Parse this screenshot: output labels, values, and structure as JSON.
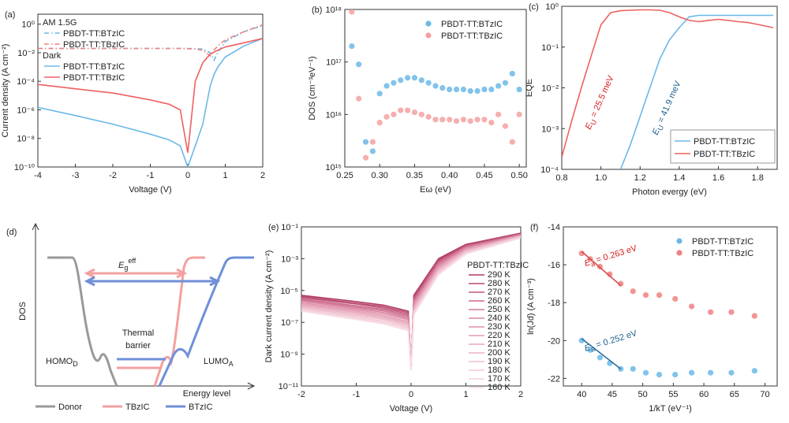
{
  "chart_data": [
    {
      "panel": "(a)",
      "type": "line",
      "x_label": "Voltage (V)",
      "y_label": "Current density (A cm⁻²)",
      "xlim": [
        -4,
        2
      ],
      "ylim": [
        1e-10,
        5
      ],
      "log_y": true,
      "xticks": [
        -4,
        -3,
        -2,
        -1,
        0,
        1,
        2
      ],
      "yticks": [
        {
          "value": 1e-10,
          "label": "10⁻¹⁰"
        },
        {
          "value": 1e-08,
          "label": "10⁻⁸"
        },
        {
          "value": 1e-06,
          "label": "10⁻⁶"
        },
        {
          "value": 0.0001,
          "label": "10⁻⁴"
        },
        {
          "value": 0.01,
          "label": "10⁻²"
        },
        {
          "value": 1,
          "label": "10⁰"
        }
      ],
      "legend": "upper left",
      "legend_groups": [
        "AM 1.5G",
        "Dark"
      ],
      "x": [
        -4,
        -3,
        -2,
        -1,
        -0.5,
        -0.2,
        0,
        0.2,
        0.4,
        0.6,
        0.7,
        0.8,
        1,
        1.5,
        2
      ],
      "series": [
        {
          "name": "PBDT-TT:BTzIC",
          "color": "#6bb8e8",
          "style": "dash-dot",
          "values": [
            0.02,
            0.02,
            0.02,
            0.02,
            0.02,
            0.02,
            0.02,
            0.019,
            0.018,
            0.01,
            0.003,
            0.01,
            0.06,
            0.3,
            0.8
          ]
        },
        {
          "name": "PBDT-TT:TBzIC",
          "color": "#f08080",
          "style": "dash-dot",
          "values": [
            0.02,
            0.02,
            0.02,
            0.02,
            0.02,
            0.02,
            0.019,
            0.018,
            0.015,
            0.006,
            0.015,
            0.03,
            0.08,
            0.3,
            0.9
          ]
        },
        {
          "name": "PBDT-TT:BTzIC",
          "color": "#6bb8e8",
          "style": "solid",
          "values": [
            1.5e-06,
            4e-07,
            1e-07,
            2e-08,
            8e-09,
            3e-09,
            1e-10,
            3e-09,
            1e-07,
            5e-05,
            0.0003,
            0.001,
            0.005,
            0.03,
            0.1
          ]
        },
        {
          "name": "PBDT-TT:TBzIC",
          "color": "#f06060",
          "style": "solid",
          "values": [
            6e-05,
            3e-05,
            1.5e-05,
            5e-06,
            2.5e-06,
            1e-06,
            1e-09,
            0.0001,
            0.002,
            0.008,
            0.011,
            0.015,
            0.025,
            0.05,
            0.1
          ]
        }
      ]
    },
    {
      "panel": "(b)",
      "type": "scatter",
      "x_label": "Eω (eV)",
      "y_label": "DOS (cm⁻³eV⁻¹)",
      "xlim": [
        0.25,
        0.51
      ],
      "ylim": [
        1000000000000000.0,
        1e+18
      ],
      "log_y": true,
      "xticks": [
        0.25,
        {
          "value": 0.3,
          "label": "0.30"
        },
        0.35,
        {
          "value": 0.4,
          "label": "0.40"
        },
        0.45,
        {
          "value": 0.5,
          "label": "0.50"
        }
      ],
      "yticks": [
        {
          "value": 1000000000000000.0,
          "label": "10¹⁵"
        },
        {
          "value": 1e+16,
          "label": "10¹⁶"
        },
        {
          "value": 1e+17,
          "label": "10¹⁷"
        },
        {
          "value": 1e+18,
          "label": "10¹⁸"
        }
      ],
      "legend": "upper right",
      "x": [
        0.26,
        0.27,
        0.28,
        0.29,
        0.3,
        0.31,
        0.32,
        0.33,
        0.34,
        0.35,
        0.36,
        0.37,
        0.38,
        0.39,
        0.4,
        0.41,
        0.42,
        0.43,
        0.44,
        0.45,
        0.46,
        0.47,
        0.48,
        0.49,
        0.5
      ],
      "series": [
        {
          "name": "PBDT-TT:BTzIC",
          "color": "#6bb8e8",
          "values": [
            2e+17,
            9e+16,
            3000000000000000.0,
            2000000000000000.0,
            2.5e+16,
            3.5e+16,
            4e+16,
            4.5e+16,
            5e+16,
            5e+16,
            4.5e+16,
            4e+16,
            3.5e+16,
            3.2e+16,
            3e+16,
            3e+16,
            3e+16,
            2.8e+16,
            2.8e+16,
            3e+16,
            3e+16,
            3.5e+16,
            4e+16,
            6e+16,
            3e+16
          ]
        },
        {
          "name": "PBDT-TT:TBzIC",
          "color": "#f4a0a0",
          "values": [
            9e+17,
            2e+16,
            1500000000000000.0,
            3000000000000000.0,
            7000000000000000.0,
            9000000000000000.0,
            1e+16,
            1.2e+16,
            1.2e+16,
            1.1e+16,
            1e+16,
            9000000000000000.0,
            8000000000000000.0,
            8000000000000000.0,
            8000000000000000.0,
            7500000000000000.0,
            8000000000000000.0,
            7500000000000000.0,
            8000000000000000.0,
            8000000000000000.0,
            7000000000000000.0,
            1e+16,
            6000000000000000.0,
            3000000000000000.0,
            1e+16
          ]
        }
      ]
    },
    {
      "panel": "(c)",
      "type": "line",
      "x_label": "Photon evergy (eV)",
      "y_label": "EQE",
      "xlim": [
        0.8,
        1.9
      ],
      "ylim": [
        0.0001,
        1
      ],
      "log_y": true,
      "xticks": [
        0.8,
        {
          "value": 1,
          "label": "1.0"
        },
        1.2,
        1.4,
        1.6,
        1.8
      ],
      "yticks": [
        {
          "value": 0.0001,
          "label": "10⁻⁴"
        },
        {
          "value": 0.001,
          "label": "10⁻³"
        },
        {
          "value": 0.01,
          "label": "10⁻²"
        },
        {
          "value": 0.1,
          "label": "10⁻¹"
        },
        {
          "value": 1,
          "label": "10⁰"
        }
      ],
      "legend": "lower right",
      "x": [
        0.8,
        0.85,
        0.9,
        0.95,
        1,
        1.05,
        1.1,
        1.15,
        1.2,
        1.25,
        1.3,
        1.35,
        1.4,
        1.45,
        1.5,
        1.55,
        1.6,
        1.65,
        1.7,
        1.75,
        1.8,
        1.85,
        1.88
      ],
      "series": [
        {
          "name": "PBDT-TT:BTzIC",
          "color": "#6bb8e8",
          "style": "solid",
          "values": [
            null,
            null,
            null,
            null,
            null,
            null,
            0.0001,
            0.0004,
            0.002,
            0.01,
            0.05,
            0.15,
            0.3,
            0.55,
            0.6,
            0.6,
            0.6,
            0.6,
            0.6,
            0.6,
            0.6,
            0.6,
            0.6
          ]
        },
        {
          "name": "PBDT-TT:TBzIC",
          "color": "#f06060",
          "style": "solid",
          "values": [
            0.0002,
            0.0015,
            0.01,
            0.06,
            0.35,
            0.7,
            0.78,
            0.8,
            0.82,
            0.82,
            0.8,
            0.7,
            0.55,
            0.45,
            0.42,
            0.45,
            0.48,
            0.45,
            0.42,
            0.4,
            0.36,
            0.32,
            0.3
          ]
        }
      ],
      "annotations": [
        {
          "symbol": "E",
          "subscript": "U",
          "text": " = 25.5 meV"
        },
        {
          "symbol": "E",
          "subscript": "U",
          "text": " = 41.9 meV"
        }
      ]
    },
    {
      "panel": "(e)",
      "type": "line",
      "x_label": "Voltage (V)",
      "y_label": "Dark current density (A cm⁻²)",
      "xlim": [
        -2,
        2
      ],
      "ylim": [
        1e-11,
        0.1
      ],
      "log_y": true,
      "xticks": [
        -2,
        -1,
        0,
        1,
        2
      ],
      "yticks": [
        {
          "value": 1e-11,
          "label": "10⁻¹¹"
        },
        {
          "value": 1e-09,
          "label": "10⁻⁹"
        },
        {
          "value": 1e-07,
          "label": "10⁻⁷"
        },
        {
          "value": 1e-05,
          "label": "10⁻⁵"
        },
        {
          "value": 0.001,
          "label": "10⁻³"
        },
        {
          "value": 0.1,
          "label": "10⁻¹"
        }
      ],
      "legend": "right",
      "legend_title": "PBDT-TT:TBzIC",
      "x": [
        -2,
        -1,
        -0.5,
        -0.05,
        0,
        0.05,
        0.5,
        1,
        2
      ],
      "series": [
        {
          "name": "290 K",
          "color": "#b03a62",
          "style": "solid",
          "values": [
            5e-06,
            2e-06,
            1.2e-06,
            5e-07,
            1e-10,
            5e-06,
            0.001,
            0.008,
            0.04
          ]
        },
        {
          "name": "280 K",
          "color": "#b94a6f",
          "style": "solid",
          "values": [
            4.2e-06,
            1.6e-06,
            9.7e-07,
            4e-07,
            1e-10,
            4e-06,
            0.00084,
            0.0072,
            0.038
          ]
        },
        {
          "name": "270 K",
          "color": "#c2597c",
          "style": "solid",
          "values": [
            3.5e-06,
            1.4e-06,
            7.9e-07,
            3.2e-07,
            1e-10,
            3.2e-06,
            0.0007,
            0.0065,
            0.036
          ]
        },
        {
          "name": "260 K",
          "color": "#ca6989",
          "style": "solid",
          "values": [
            2.9e-06,
            1.1e-06,
            6.4e-07,
            2.6e-07,
            1e-10,
            2.6e-06,
            0.00059,
            0.0059,
            0.034
          ]
        },
        {
          "name": "250 K",
          "color": "#d27896",
          "style": "solid",
          "values": [
            2.5e-06,
            9e-07,
            5.2e-07,
            2.1e-07,
            1e-10,
            2.1e-06,
            0.00049,
            0.0053,
            0.033
          ]
        },
        {
          "name": "240 K",
          "color": "#d985a1",
          "style": "solid",
          "values": [
            2.1e-06,
            7.4e-07,
            4.2e-07,
            1.7e-07,
            1e-10,
            1.7e-06,
            0.00041,
            0.0048,
            0.031
          ]
        },
        {
          "name": "230 K",
          "color": "#df92ab",
          "style": "solid",
          "values": [
            1.7e-06,
            6.1e-07,
            3.4e-07,
            1.4e-07,
            1e-10,
            1.4e-06,
            0.00034,
            0.0043,
            0.03
          ]
        },
        {
          "name": "220 K",
          "color": "#e49eb4",
          "style": "solid",
          "values": [
            1.4e-06,
            5e-07,
            2.7e-07,
            1.1e-07,
            1e-10,
            1.1e-06,
            0.00029,
            0.0039,
            0.028
          ]
        },
        {
          "name": "210 K",
          "color": "#e8a9bd",
          "style": "solid",
          "values": [
            1.2e-06,
            4.1e-07,
            2.2e-07,
            8.8e-08,
            1e-10,
            8.8e-07,
            0.00024,
            0.0035,
            0.027
          ]
        },
        {
          "name": "200 K",
          "color": "#ecb4c5",
          "style": "solid",
          "values": [
            1e-06,
            3.3e-07,
            1.8e-07,
            7.1e-08,
            1e-10,
            7.1e-07,
            0.0002,
            0.0031,
            0.026
          ]
        },
        {
          "name": "190 K",
          "color": "#efbecd",
          "style": "solid",
          "values": [
            8.5e-07,
            2.7e-07,
            1.5e-07,
            5.7e-08,
            1e-10,
            5.7e-07,
            0.00017,
            0.0028,
            0.025
          ]
        },
        {
          "name": "180 K",
          "color": "#f2c8d4",
          "style": "solid",
          "values": [
            7.1e-07,
            2.2e-07,
            1.2e-07,
            4.6e-08,
            1e-10,
            4.6e-07,
            0.00014,
            0.0025,
            0.023
          ]
        },
        {
          "name": "170 K",
          "color": "#f5d2dc",
          "style": "solid",
          "values": [
            6e-07,
            1.8e-07,
            9.8e-08,
            3.7e-08,
            1e-10,
            3.7e-07,
            0.00012,
            0.0023,
            0.022
          ]
        },
        {
          "name": "160 K",
          "color": "#f8dce4",
          "style": "solid",
          "values": [
            5e-07,
            1.5e-07,
            8e-08,
            3e-08,
            1e-10,
            3e-07,
            0.0001,
            0.002,
            0.02
          ]
        }
      ]
    },
    {
      "panel": "(f)",
      "type": "scatter",
      "x_label": "1/kT (eV⁻¹)",
      "y_label": "ln(Jd) (A cm⁻³)",
      "xlim": [
        37,
        72
      ],
      "ylim": [
        -22.4,
        -14
      ],
      "log_y": false,
      "xticks": [
        40,
        45,
        50,
        55,
        60,
        65,
        70
      ],
      "yticks": [
        -22,
        -20,
        -18,
        -16,
        -14
      ],
      "legend": "upper right",
      "x": [
        40,
        41.4,
        43,
        44.6,
        46.4,
        48.4,
        50.5,
        52.7,
        55.3,
        58,
        61.1,
        64.5,
        68.3
      ],
      "series": [
        {
          "name": "PBDT-TT:BTzIC",
          "color": "#6bb8e8",
          "values": [
            -20,
            -20.5,
            -20.9,
            -21.2,
            -21.5,
            -21.5,
            -21.7,
            -21.8,
            -21.8,
            -21.7,
            -21.7,
            -21.7,
            -21.6
          ],
          "fit_x": [
            40,
            46.4
          ],
          "fit_values": [
            -19.9,
            -21.5
          ],
          "fit_color": "#2a6f9e"
        },
        {
          "name": "PBDT-TT:TBzIC",
          "color": "#f08080",
          "values": [
            -15.4,
            -15.7,
            -16.1,
            -16.5,
            -17,
            -17.4,
            -17.6,
            -17.6,
            -17.8,
            -18.2,
            -18.5,
            -18.5,
            -18.7
          ],
          "fit_x": [
            40,
            46.4
          ],
          "fit_values": [
            -15.3,
            -17.1
          ],
          "fit_color": "#d84a4a"
        }
      ],
      "annotations": [
        {
          "symbol": "E",
          "subscript": "a",
          "text": " = 0.263 eV"
        },
        {
          "symbol": "E",
          "subscript": "a",
          "text": " = 0.252 eV"
        }
      ]
    }
  ],
  "diagram": {
    "panel": "(d)",
    "y_label": "DOS",
    "x_label": "Energy level",
    "gap": {
      "symbol": "E",
      "subscript": "g",
      "superscript": "eff"
    },
    "barrier": [
      "Thermal",
      "barrier"
    ],
    "homo": {
      "symbol": "HOMO",
      "subscript": "D"
    },
    "lumo": {
      "symbol": "LUMO",
      "subscript": "A"
    },
    "legend": [
      "Donor",
      "TBzIC",
      "BTzIC"
    ]
  }
}
